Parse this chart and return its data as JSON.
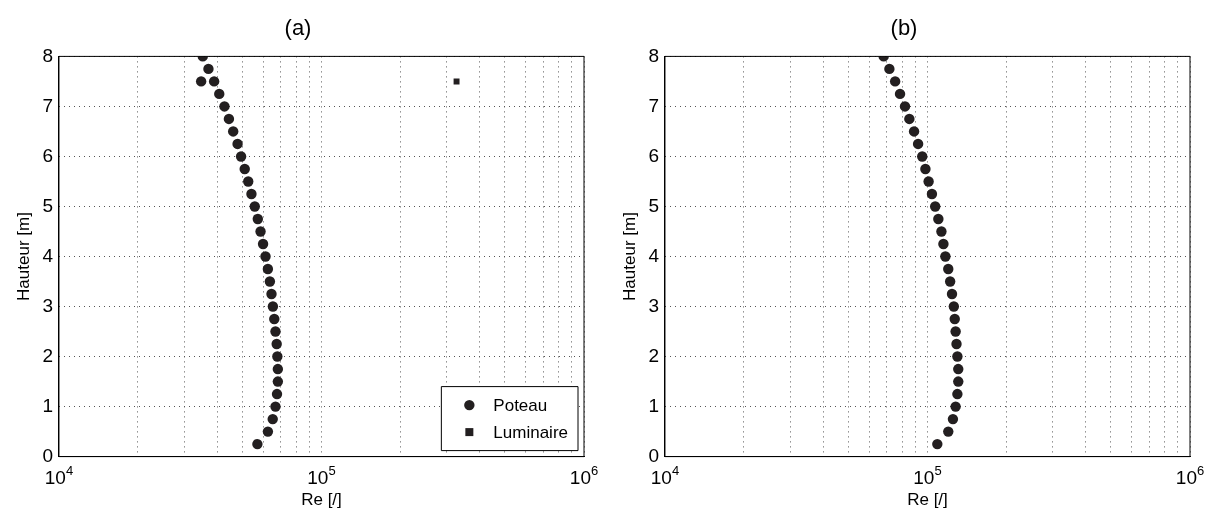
{
  "chart_data": [
    {
      "type": "scatter",
      "title": "(a)",
      "xlabel": "Re [/]",
      "ylabel": "Hauteur [m]",
      "log": "x",
      "grid": true,
      "legend": "bottom right",
      "marker": "circle",
      "xlim": [
        10000,
        1000000
      ],
      "xticks": [
        {
          "value": 10000,
          "label": "10$^{4}$"
        },
        {
          "value": 20000,
          "label": null
        },
        {
          "value": 30000,
          "label": null
        },
        {
          "value": 40000,
          "label": null
        },
        {
          "value": 50000,
          "label": null
        },
        {
          "value": 60000,
          "label": null
        },
        {
          "value": 70000,
          "label": null
        },
        {
          "value": 80000,
          "label": null
        },
        {
          "value": 90000,
          "label": null
        },
        {
          "value": 100000,
          "label": "10$^{5}$"
        },
        {
          "value": 200000,
          "label": null
        },
        {
          "value": 300000,
          "label": null
        },
        {
          "value": 400000,
          "label": null
        },
        {
          "value": 500000,
          "label": null
        },
        {
          "value": 600000,
          "label": null
        },
        {
          "value": 700000,
          "label": null
        },
        {
          "value": 800000,
          "label": null
        },
        {
          "value": 900000,
          "label": null
        },
        {
          "value": 1000000,
          "label": "10$^{6}$"
        }
      ],
      "ylim": [
        0,
        8
      ],
      "yticks": [
        0,
        1,
        2,
        3,
        4,
        5,
        6,
        7,
        8
      ],
      "series": [
        {
          "name": "Poteau",
          "color": "#231f20",
          "x": [
            35300,
            37100,
            34800,
            39000,
            40800,
            42700,
            44400,
            46100,
            47900,
            49400,
            51000,
            52600,
            54100,
            55700,
            57200,
            58600,
            59900,
            61200,
            62500,
            63600,
            64500,
            65300,
            66100,
            66800,
            67500,
            67900,
            68200,
            68200,
            67700,
            66800,
            65200,
            62500,
            57000
          ],
          "values": [
            8,
            7.75,
            7.5,
            7.5,
            7.25,
            7,
            6.75,
            6.5,
            6.25,
            6,
            5.75,
            5.5,
            5.25,
            5,
            4.75,
            4.5,
            4.25,
            4,
            3.75,
            3.5,
            3.25,
            3,
            2.75,
            2.5,
            2.25,
            2,
            1.75,
            1.5,
            1.25,
            1,
            0.75,
            0.5,
            0.25
          ]
        },
        {
          "name": "Luminaire",
          "color": "#231f20",
          "marker": "square",
          "x": [
            327000
          ],
          "values": [
            7.5
          ]
        }
      ]
    },
    {
      "type": "scatter",
      "title": "(b)",
      "xlabel": "Re [/]",
      "ylabel": "Hauteur [m]",
      "log": "x",
      "grid": true,
      "marker": "circle",
      "xlim": [
        10000,
        1000000
      ],
      "xticks": [
        {
          "value": 10000,
          "label": "10$^{4}$"
        },
        {
          "value": 20000,
          "label": null
        },
        {
          "value": 30000,
          "label": null
        },
        {
          "value": 40000,
          "label": null
        },
        {
          "value": 50000,
          "label": null
        },
        {
          "value": 60000,
          "label": null
        },
        {
          "value": 70000,
          "label": null
        },
        {
          "value": 80000,
          "label": null
        },
        {
          "value": 90000,
          "label": null
        },
        {
          "value": 100000,
          "label": "10$^{5}$"
        },
        {
          "value": 200000,
          "label": null
        },
        {
          "value": 300000,
          "label": null
        },
        {
          "value": 400000,
          "label": null
        },
        {
          "value": 500000,
          "label": null
        },
        {
          "value": 600000,
          "label": null
        },
        {
          "value": 700000,
          "label": null
        },
        {
          "value": 800000,
          "label": null
        },
        {
          "value": 900000,
          "label": null
        },
        {
          "value": 1000000,
          "label": "10$^{6}$"
        }
      ],
      "ylim": [
        0,
        8
      ],
      "yticks": [
        0,
        1,
        2,
        3,
        4,
        5,
        6,
        7,
        8
      ],
      "series": [
        {
          "color": "#231f20",
          "x": [
            68100,
            71600,
            75300,
            78600,
            82100,
            85300,
            88900,
            92100,
            95500,
            98200,
            101000,
            104000,
            107000,
            110000,
            113000,
            115000,
            117000,
            120000,
            122000,
            124000,
            126000,
            127000,
            128000,
            129000,
            130000,
            131000,
            131000,
            130000,
            128000,
            125000,
            120000,
            109000
          ],
          "values": [
            8,
            7.75,
            7.5,
            7.25,
            7,
            6.75,
            6.5,
            6.25,
            6,
            5.75,
            5.5,
            5.25,
            5,
            4.75,
            4.5,
            4.25,
            4,
            3.75,
            3.5,
            3.25,
            3,
            2.75,
            2.5,
            2.25,
            2,
            1.75,
            1.5,
            1.25,
            1,
            0.75,
            0.5,
            0.25
          ]
        }
      ]
    }
  ]
}
